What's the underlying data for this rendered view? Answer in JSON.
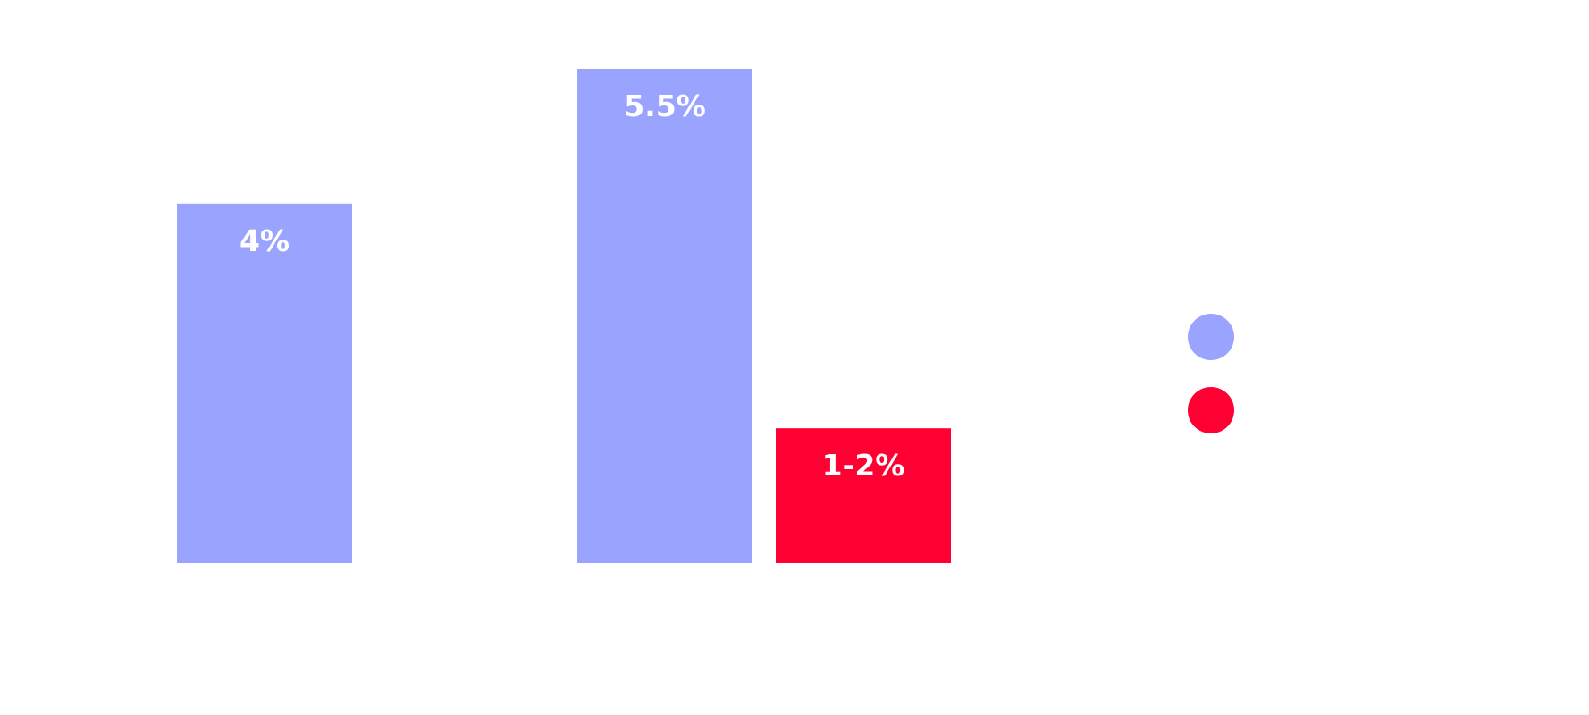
{
  "chart_data": {
    "type": "bar",
    "categories": [
      "",
      ""
    ],
    "series": [
      {
        "color": "#9aa4ff",
        "values": [
          4,
          5.5
        ],
        "labels": [
          "4%",
          "5.5%"
        ]
      },
      {
        "color": "#ff0033",
        "values": [
          null,
          1.5
        ],
        "labels": [
          null,
          "1-2%"
        ]
      }
    ],
    "title": "",
    "xlabel": "",
    "ylabel": "",
    "ylim": [
      0,
      5.5
    ],
    "grid": false,
    "legend": {
      "placement": "right",
      "entries": [
        "",
        ""
      ]
    }
  },
  "colors": {
    "series_1": "#9aa4ff",
    "series_2": "#ff0033",
    "bar_label": "#ffffff"
  }
}
